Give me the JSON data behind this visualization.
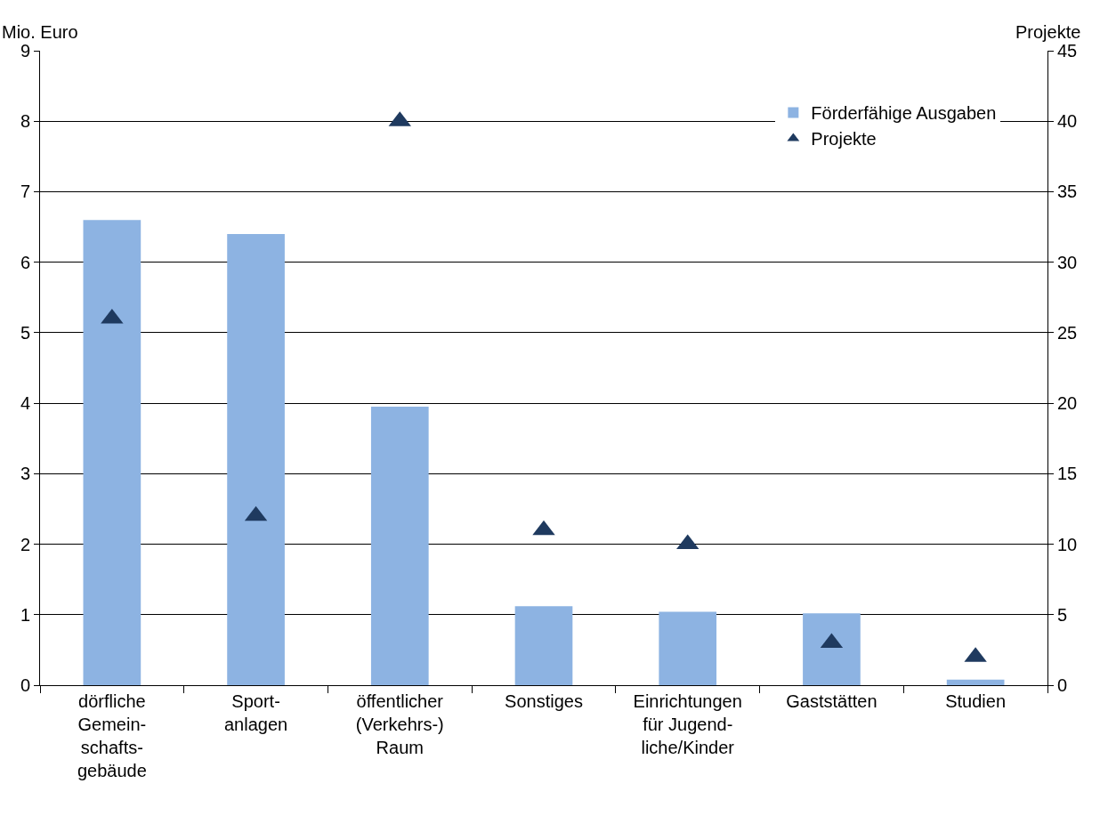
{
  "chart_data": {
    "type": "bar",
    "ylabel": "Mio. Euro",
    "y2label": "Projekte",
    "categories": [
      "dörfliche\nGemein-\nschafts-\ngebäude",
      "Sport-\nanlagen",
      "öffentlicher\n(Verkehrs-)\nRaum",
      "Sonstiges",
      "Einrichtungen\nfür Jugend-\nliche/Kinder",
      "Gaststätten",
      "Studien"
    ],
    "series": [
      {
        "name": "Förderfähige Ausgaben",
        "color": "#8db3e2",
        "values": [
          6.6,
          6.4,
          3.95,
          1.12,
          1.04,
          1.02,
          0.08
        ]
      },
      {
        "name": "Projekte",
        "type": "scatter",
        "axis": "y2",
        "marker": "triangle",
        "color": "#1f3a5f",
        "values": [
          26,
          12,
          40,
          11,
          10,
          3,
          2
        ]
      }
    ],
    "ylim": [
      0,
      9
    ],
    "yticks": [
      0,
      1,
      2,
      3,
      4,
      5,
      6,
      7,
      8,
      9
    ],
    "y2lim": [
      0,
      45
    ],
    "y2ticks": [
      0,
      5,
      10,
      15,
      20,
      25,
      30,
      35,
      40,
      45
    ],
    "grid": "y",
    "legend": "top right"
  }
}
